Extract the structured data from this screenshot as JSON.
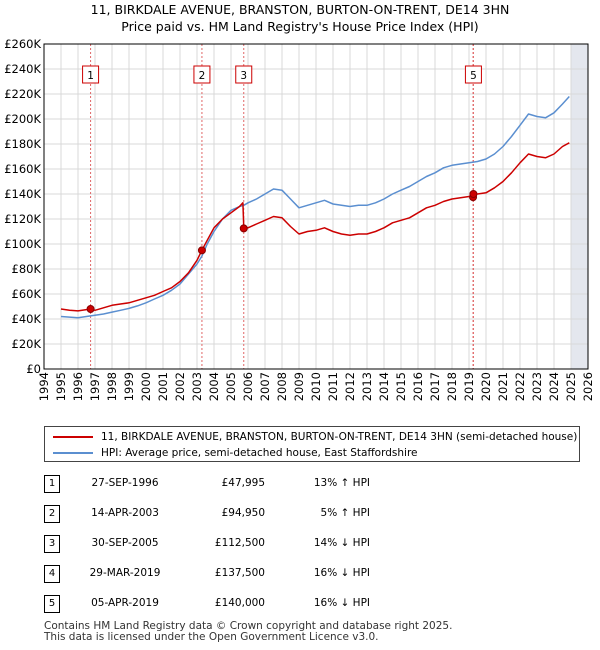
{
  "chart_data": {
    "type": "line",
    "title": "11, BIRKDALE AVENUE, BRANSTON, BURTON-ON-TRENT, DE14 3HN",
    "subtitle": "Price paid vs. HM Land Registry's House Price Index (HPI)",
    "xlim": [
      1994,
      2026
    ],
    "ylim": [
      0,
      260000
    ],
    "x_ticks": [
      "1994",
      "1995",
      "1996",
      "1997",
      "1998",
      "1999",
      "2000",
      "2001",
      "2002",
      "2003",
      "2004",
      "2005",
      "2006",
      "2007",
      "2008",
      "2009",
      "2010",
      "2011",
      "2012",
      "2013",
      "2014",
      "2015",
      "2016",
      "2017",
      "2018",
      "2019",
      "2020",
      "2021",
      "2022",
      "2023",
      "2024",
      "2025",
      "2026"
    ],
    "y_ticks": [
      {
        "value": 0,
        "label": "£0"
      },
      {
        "value": 20000,
        "label": "£20K"
      },
      {
        "value": 40000,
        "label": "£40K"
      },
      {
        "value": 60000,
        "label": "£60K"
      },
      {
        "value": 80000,
        "label": "£80K"
      },
      {
        "value": 100000,
        "label": "£100K"
      },
      {
        "value": 120000,
        "label": "£120K"
      },
      {
        "value": 140000,
        "label": "£140K"
      },
      {
        "value": 160000,
        "label": "£160K"
      },
      {
        "value": 180000,
        "label": "£180K"
      },
      {
        "value": 200000,
        "label": "£200K"
      },
      {
        "value": 220000,
        "label": "£220K"
      },
      {
        "value": 240000,
        "label": "£240K"
      },
      {
        "value": 260000,
        "label": "£260K"
      }
    ],
    "future_shade_from": 2025.0,
    "series": [
      {
        "name": "11, BIRKDALE AVENUE, BRANSTON, BURTON-ON-TRENT, DE14 3HN (semi-detached house)",
        "color": "#cc0000",
        "points": [
          [
            1995.0,
            48000
          ],
          [
            1995.5,
            47000
          ],
          [
            1996.0,
            46500
          ],
          [
            1996.74,
            47995
          ],
          [
            1997.0,
            47000
          ],
          [
            1997.5,
            49000
          ],
          [
            1998.0,
            51000
          ],
          [
            1998.5,
            52000
          ],
          [
            1999.0,
            53000
          ],
          [
            1999.5,
            55000
          ],
          [
            2000.0,
            57000
          ],
          [
            2000.5,
            59000
          ],
          [
            2001.0,
            62000
          ],
          [
            2001.5,
            65000
          ],
          [
            2002.0,
            70000
          ],
          [
            2002.5,
            77000
          ],
          [
            2003.0,
            87000
          ],
          [
            2003.29,
            94950
          ],
          [
            2003.6,
            103000
          ],
          [
            2004.0,
            113000
          ],
          [
            2004.5,
            120000
          ],
          [
            2005.0,
            125000
          ],
          [
            2005.5,
            130000
          ],
          [
            2005.7,
            133000
          ],
          [
            2005.75,
            112500
          ],
          [
            2006.0,
            113000
          ],
          [
            2006.5,
            116000
          ],
          [
            2007.0,
            119000
          ],
          [
            2007.5,
            122000
          ],
          [
            2008.0,
            121000
          ],
          [
            2008.5,
            114000
          ],
          [
            2009.0,
            108000
          ],
          [
            2009.5,
            110000
          ],
          [
            2010.0,
            111000
          ],
          [
            2010.5,
            113000
          ],
          [
            2011.0,
            110000
          ],
          [
            2011.5,
            108000
          ],
          [
            2012.0,
            107000
          ],
          [
            2012.5,
            108000
          ],
          [
            2013.0,
            108000
          ],
          [
            2013.5,
            110000
          ],
          [
            2014.0,
            113000
          ],
          [
            2014.5,
            117000
          ],
          [
            2015.0,
            119000
          ],
          [
            2015.5,
            121000
          ],
          [
            2016.0,
            125000
          ],
          [
            2016.5,
            129000
          ],
          [
            2017.0,
            131000
          ],
          [
            2017.5,
            134000
          ],
          [
            2018.0,
            136000
          ],
          [
            2018.5,
            137000
          ],
          [
            2019.0,
            138000
          ],
          [
            2019.24,
            137500
          ],
          [
            2019.26,
            140000
          ],
          [
            2019.5,
            140000
          ],
          [
            2020.0,
            141000
          ],
          [
            2020.5,
            145000
          ],
          [
            2021.0,
            150000
          ],
          [
            2021.5,
            157000
          ],
          [
            2022.0,
            165000
          ],
          [
            2022.5,
            172000
          ],
          [
            2023.0,
            170000
          ],
          [
            2023.5,
            169000
          ],
          [
            2024.0,
            172000
          ],
          [
            2024.5,
            178000
          ],
          [
            2024.9,
            181000
          ]
        ]
      },
      {
        "name": "HPI: Average price, semi-detached house, East Staffordshire",
        "color": "#5b8fd0",
        "points": [
          [
            1995.0,
            42000
          ],
          [
            1995.5,
            41500
          ],
          [
            1996.0,
            41000
          ],
          [
            1996.74,
            42500
          ],
          [
            1997.0,
            43000
          ],
          [
            1997.5,
            44000
          ],
          [
            1998.0,
            45500
          ],
          [
            1998.5,
            47000
          ],
          [
            1999.0,
            48500
          ],
          [
            1999.5,
            50500
          ],
          [
            2000.0,
            53000
          ],
          [
            2000.5,
            56000
          ],
          [
            2001.0,
            59000
          ],
          [
            2001.5,
            63000
          ],
          [
            2002.0,
            68000
          ],
          [
            2002.5,
            76000
          ],
          [
            2003.0,
            84000
          ],
          [
            2003.29,
            90300
          ],
          [
            2003.6,
            100000
          ],
          [
            2004.0,
            110000
          ],
          [
            2004.5,
            120000
          ],
          [
            2005.0,
            127000
          ],
          [
            2005.5,
            130000
          ],
          [
            2005.75,
            131000
          ],
          [
            2006.0,
            133000
          ],
          [
            2006.5,
            136000
          ],
          [
            2007.0,
            140000
          ],
          [
            2007.5,
            144000
          ],
          [
            2008.0,
            143000
          ],
          [
            2008.5,
            136000
          ],
          [
            2009.0,
            129000
          ],
          [
            2009.5,
            131000
          ],
          [
            2010.0,
            133000
          ],
          [
            2010.5,
            135000
          ],
          [
            2011.0,
            132000
          ],
          [
            2011.5,
            131000
          ],
          [
            2012.0,
            130000
          ],
          [
            2012.5,
            131000
          ],
          [
            2013.0,
            131000
          ],
          [
            2013.5,
            133000
          ],
          [
            2014.0,
            136000
          ],
          [
            2014.5,
            140000
          ],
          [
            2015.0,
            143000
          ],
          [
            2015.5,
            146000
          ],
          [
            2016.0,
            150000
          ],
          [
            2016.5,
            154000
          ],
          [
            2017.0,
            157000
          ],
          [
            2017.5,
            161000
          ],
          [
            2018.0,
            163000
          ],
          [
            2018.5,
            164000
          ],
          [
            2019.0,
            165000
          ],
          [
            2019.25,
            165500
          ],
          [
            2019.5,
            166000
          ],
          [
            2020.0,
            168000
          ],
          [
            2020.5,
            172000
          ],
          [
            2021.0,
            178000
          ],
          [
            2021.5,
            186000
          ],
          [
            2022.0,
            195000
          ],
          [
            2022.5,
            204000
          ],
          [
            2023.0,
            202000
          ],
          [
            2023.5,
            201000
          ],
          [
            2024.0,
            205000
          ],
          [
            2024.5,
            212000
          ],
          [
            2024.9,
            218000
          ]
        ]
      }
    ],
    "markers": [
      {
        "label": "1",
        "x": 1996.74,
        "y": 47995
      },
      {
        "label": "2",
        "x": 2003.29,
        "y": 94950
      },
      {
        "label": "3",
        "x": 2005.75,
        "y": 112500
      },
      {
        "label": "4",
        "x": 2019.24,
        "y": 137500
      },
      {
        "label": "5",
        "x": 2019.26,
        "y": 140000
      }
    ],
    "marker_boxes": [
      {
        "label": "1",
        "x": 1996.74
      },
      {
        "label": "2",
        "x": 2003.29
      },
      {
        "label": "3",
        "x": 2005.75
      },
      {
        "label": "5",
        "x": 2019.26
      }
    ]
  },
  "legend": {
    "property_label": "11, BIRKDALE AVENUE, BRANSTON, BURTON-ON-TRENT, DE14 3HN (semi-detached house)",
    "hpi_label": "HPI: Average price, semi-detached house, East Staffordshire",
    "property_color": "#cc0000",
    "hpi_color": "#5b8fd0"
  },
  "transactions": [
    {
      "num": "1",
      "date": "27-SEP-1996",
      "price": "£47,995",
      "hpi": "13% ↑ HPI"
    },
    {
      "num": "2",
      "date": "14-APR-2003",
      "price": "£94,950",
      "hpi": "5% ↑ HPI"
    },
    {
      "num": "3",
      "date": "30-SEP-2005",
      "price": "£112,500",
      "hpi": "14% ↓ HPI"
    },
    {
      "num": "4",
      "date": "29-MAR-2019",
      "price": "£137,500",
      "hpi": "16% ↓ HPI"
    },
    {
      "num": "5",
      "date": "05-APR-2019",
      "price": "£140,000",
      "hpi": "16% ↓ HPI"
    }
  ],
  "footer": {
    "line1": "Contains HM Land Registry data © Crown copyright and database right 2025.",
    "line2": "This data is licensed under the Open Government Licence v3.0."
  }
}
